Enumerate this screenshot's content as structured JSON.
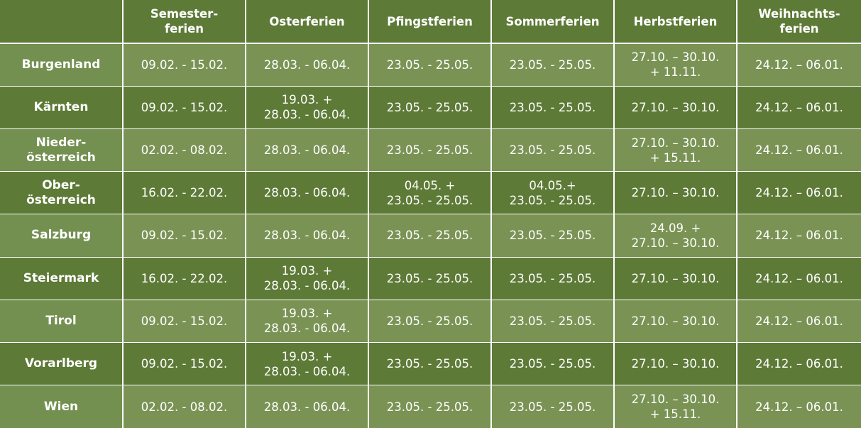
{
  "table": {
    "header": [
      "",
      "Semester-\nferien",
      "Osterferien",
      "Pfingstferien",
      "Sommerferien",
      "Herbstferien",
      "Weihnachts-\nferien"
    ],
    "rows": [
      {
        "state": "Burgenland",
        "cells": [
          "09.02. - 15.02.",
          "28.03. - 06.04.",
          "23.05. - 25.05.",
          "23.05. - 25.05.",
          "27.10. – 30.10.\n+ 11.11.",
          "24.12. – 06.01."
        ]
      },
      {
        "state": "Kärnten",
        "cells": [
          "09.02. - 15.02.",
          "19.03. +\n28.03. - 06.04.",
          "23.05. - 25.05.",
          "23.05. - 25.05.",
          "27.10. – 30.10.",
          "24.12. – 06.01."
        ]
      },
      {
        "state": "Nieder-\nösterreich",
        "cells": [
          "02.02. - 08.02.",
          "28.03. - 06.04.",
          "23.05. - 25.05.",
          "23.05. - 25.05.",
          "27.10. – 30.10.\n+ 15.11.",
          "24.12. – 06.01."
        ]
      },
      {
        "state": "Ober-\nösterreich",
        "cells": [
          "16.02. - 22.02.",
          "28.03. - 06.04.",
          "04.05. +\n23.05. - 25.05.",
          "04.05.+\n23.05. - 25.05.",
          "27.10. – 30.10.",
          "24.12. – 06.01."
        ]
      },
      {
        "state": "Salzburg",
        "cells": [
          "09.02. - 15.02.",
          "28.03. - 06.04.",
          "23.05. - 25.05.",
          "23.05. - 25.05.",
          "24.09. +\n27.10. – 30.10.",
          "24.12. – 06.01."
        ]
      },
      {
        "state": "Steiermark",
        "cells": [
          "16.02. - 22.02.",
          "19.03. +\n28.03. - 06.04.",
          "23.05. - 25.05.",
          "23.05. - 25.05.",
          "27.10. – 30.10.",
          "24.12. – 06.01."
        ]
      },
      {
        "state": "Tirol",
        "cells": [
          "09.02. - 15.02.",
          "19.03. +\n28.03. - 06.04.",
          "23.05. - 25.05.",
          "23.05. - 25.05.",
          "27.10. – 30.10.",
          "24.12. – 06.01."
        ]
      },
      {
        "state": "Vorarlberg",
        "cells": [
          "09.02. - 15.02.",
          "19.03. +\n28.03. - 06.04.",
          "23.05. - 25.05.",
          "23.05. - 25.05.",
          "27.10. – 30.10.",
          "24.12. – 06.01."
        ]
      },
      {
        "state": "Wien",
        "cells": [
          "02.02. - 08.02.",
          "28.03. - 06.04.",
          "23.05. - 25.05.",
          "23.05. - 25.05.",
          "27.10. – 30.10.\n+ 15.11.",
          "24.12. – 06.01."
        ]
      }
    ]
  },
  "colors": {
    "dark_green": "#5d7a37",
    "light_green": "#7a9355",
    "text": "#ffffff"
  }
}
